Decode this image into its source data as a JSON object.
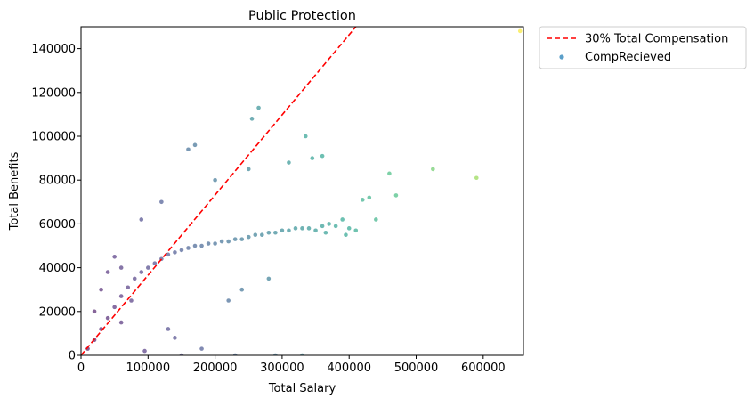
{
  "chart_data": {
    "type": "scatter",
    "title": "Public Protection",
    "xlabel": "Total Salary",
    "ylabel": "Total Benefits",
    "xlim": [
      0,
      660000
    ],
    "ylim": [
      0,
      150000
    ],
    "xticks": [
      0,
      100000,
      200000,
      300000,
      400000,
      500000,
      600000
    ],
    "yticks": [
      0,
      20000,
      40000,
      60000,
      80000,
      100000,
      120000,
      140000
    ],
    "xtick_labels": [
      "0",
      "100000",
      "200000",
      "300000",
      "400000",
      "500000",
      "600000"
    ],
    "ytick_labels": [
      "0",
      "20000",
      "40000",
      "60000",
      "80000",
      "100000",
      "120000",
      "140000"
    ],
    "legend_position": "outside-top-right",
    "colormap": "viridis",
    "color_encodes": "CompRecieved",
    "series": [
      {
        "name": "30% Total Compensation",
        "kind": "line",
        "color": "#ff0000",
        "style": "dashed",
        "x": [
          0,
          410000
        ],
        "y": [
          0,
          150000
        ]
      },
      {
        "name": "CompRecieved",
        "kind": "scatter",
        "legend_color": "#5b9fc9",
        "x": [
          10000,
          20000,
          30000,
          40000,
          50000,
          60000,
          70000,
          80000,
          90000,
          100000,
          110000,
          120000,
          130000,
          140000,
          150000,
          160000,
          170000,
          180000,
          190000,
          200000,
          210000,
          220000,
          230000,
          240000,
          250000,
          260000,
          270000,
          280000,
          290000,
          300000,
          310000,
          320000,
          330000,
          340000,
          350000,
          360000,
          370000,
          380000,
          390000,
          400000,
          410000,
          420000,
          430000,
          440000,
          460000,
          470000,
          525000,
          590000,
          655000,
          255000,
          265000,
          170000,
          160000,
          335000,
          360000,
          200000,
          120000,
          90000,
          50000,
          250000,
          310000,
          345000,
          280000,
          240000,
          220000,
          130000,
          140000,
          180000,
          95000,
          75000,
          60000,
          40000,
          30000,
          20000,
          60000,
          150000,
          230000,
          290000,
          330000,
          365000,
          395000
        ],
        "y": [
          3000,
          7000,
          12000,
          17000,
          22000,
          27000,
          31000,
          35000,
          38000,
          40000,
          42000,
          44000,
          46000,
          47000,
          48000,
          49000,
          50000,
          50000,
          51000,
          51000,
          52000,
          52000,
          53000,
          53000,
          54000,
          55000,
          55000,
          56000,
          56000,
          57000,
          57000,
          58000,
          58000,
          58000,
          57000,
          59000,
          60000,
          59000,
          62000,
          58000,
          57000,
          71000,
          72000,
          62000,
          83000,
          73000,
          85000,
          81000,
          148000,
          108000,
          113000,
          96000,
          94000,
          100000,
          91000,
          80000,
          70000,
          62000,
          45000,
          85000,
          88000,
          90000,
          35000,
          30000,
          25000,
          12000,
          8000,
          3000,
          2000,
          25000,
          40000,
          38000,
          30000,
          20000,
          15000,
          0,
          0,
          0,
          0,
          56000,
          55000
        ]
      }
    ]
  }
}
